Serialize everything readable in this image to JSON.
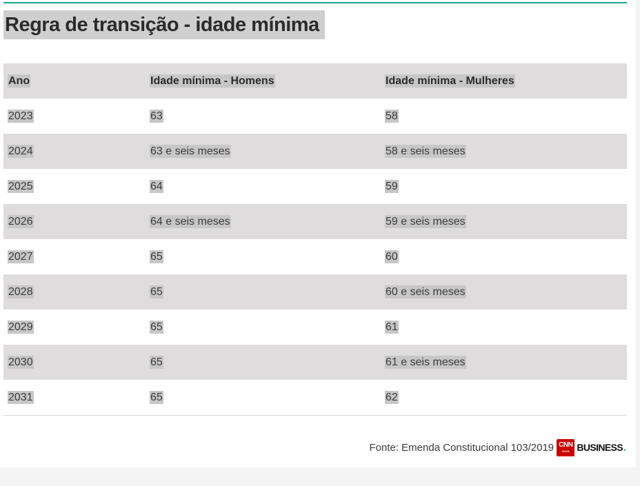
{
  "title": "Regra de transição - idade mínima",
  "table": {
    "headers": [
      "Ano",
      "Idade mínima - Homens",
      "Idade mínima - Mulheres"
    ],
    "rows": [
      [
        "2023",
        "63",
        "58"
      ],
      [
        "2024",
        "63 e seis meses",
        "58 e seis meses"
      ],
      [
        "2025",
        "64",
        "59"
      ],
      [
        "2026",
        "64 e seis meses",
        "59 e seis meses"
      ],
      [
        "2027",
        "65",
        "60"
      ],
      [
        "2028",
        "65",
        "60 e seis meses"
      ],
      [
        "2029",
        "65",
        "61"
      ],
      [
        "2030",
        "65",
        "61 e seis meses"
      ],
      [
        "2031",
        "65",
        "62"
      ]
    ]
  },
  "footer": {
    "source": "Fonte: Emenda Constitucional 103/2019",
    "logo_cnn": "CNN",
    "logo_brasil": "BRASIL",
    "logo_business": "BUSINESS"
  },
  "colors": {
    "accent": "#1aa58a",
    "row_shade": "#dedcdd",
    "text_highlight": "#c7c7c7",
    "cnn_red": "#cc0000"
  }
}
